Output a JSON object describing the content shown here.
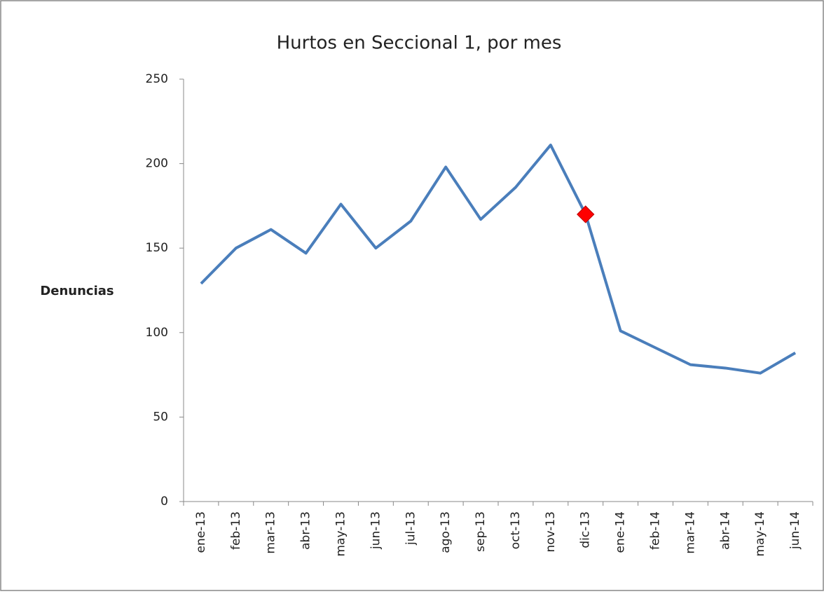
{
  "chart_data": {
    "type": "line",
    "title": "Hurtos en Seccional 1, por mes",
    "y_label": "Denuncias",
    "categories": [
      "ene-13",
      "feb-13",
      "mar-13",
      "abr-13",
      "may-13",
      "jun-13",
      "jul-13",
      "ago-13",
      "sep-13",
      "oct-13",
      "nov-13",
      "dic-13",
      "ene-14",
      "feb-14",
      "mar-14",
      "abr-14",
      "may-14",
      "jun-14"
    ],
    "values": [
      129,
      150,
      161,
      147,
      176,
      150,
      166,
      198,
      167,
      186,
      211,
      170,
      101,
      91,
      81,
      79,
      76,
      88
    ],
    "color": "#4a7ebb",
    "marker_index": 11,
    "marker_color": "#ff0000",
    "ylim": [
      0,
      250
    ],
    "yticks": [
      0,
      50,
      100,
      150,
      200,
      250
    ],
    "grid": false
  }
}
